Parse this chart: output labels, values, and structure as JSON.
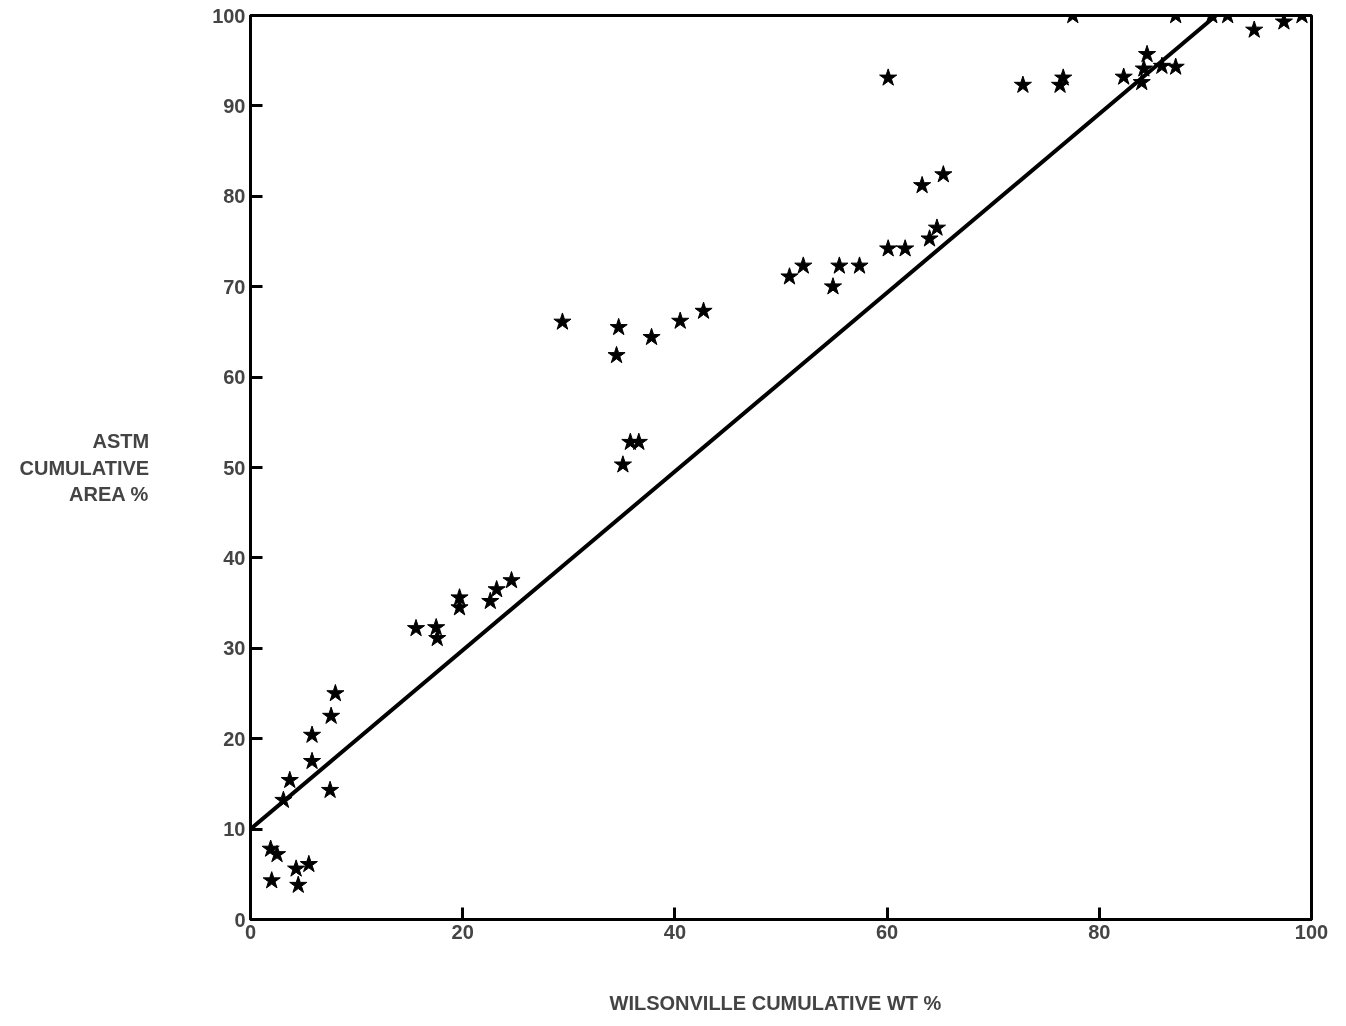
{
  "chart_data": {
    "type": "scatter",
    "xlabel": "WILSONVILLE  CUMULATIVE WT  %",
    "ylabel": "ASTM\nCUMULATIVE\nAREA %",
    "xlim": [
      0,
      100
    ],
    "ylim": [
      0,
      100
    ],
    "xticks": [
      0,
      20,
      40,
      60,
      80,
      100
    ],
    "yticks": [
      0,
      10,
      20,
      30,
      40,
      50,
      60,
      70,
      80,
      90,
      100
    ],
    "grid": false,
    "series": [
      {
        "marker": "star",
        "color": "#000000",
        "x": [
          1.9,
          2.5,
          2,
          4.3,
          4.5,
          5.5,
          3.1,
          3.7,
          5.8,
          5.8,
          7.5,
          7.6,
          8,
          15.6,
          17.5,
          17.6,
          19.7,
          19.7,
          22.6,
          23.2,
          24.6,
          29.4,
          34.5,
          34.7,
          35.1,
          35.8,
          36.6,
          37.8,
          40.5,
          42.7,
          50.8,
          52.1,
          54.9,
          55.5,
          57.4,
          60.1,
          60.1,
          61.7,
          63.3,
          64,
          64.7,
          65.3,
          72.8,
          76.3,
          76.6,
          77.5,
          82.3,
          84,
          84.5,
          84.2,
          85.9,
          87.2,
          87.2,
          90.6,
          92.1,
          94.6,
          97.4,
          99.1
        ],
        "values": [
          7.8,
          7.2,
          4.3,
          5.6,
          3.8,
          6.1,
          13.2,
          15.4,
          17.5,
          20.4,
          14.3,
          22.5,
          25,
          32.2,
          32.3,
          31.1,
          34.5,
          35.6,
          35.2,
          36.5,
          37.5,
          66.1,
          62.4,
          65.5,
          50.3,
          52.8,
          52.8,
          64.4,
          66.2,
          67.3,
          71.1,
          72.3,
          70,
          72.3,
          72.3,
          93.1,
          74.2,
          74.2,
          81.2,
          75.3,
          76.5,
          82.4,
          92.3,
          92.3,
          93.1,
          100,
          93.2,
          92.6,
          95.7,
          94.1,
          94.4,
          94.3,
          100,
          100,
          100,
          98.4,
          99.3,
          100
        ]
      },
      {
        "type": "line",
        "color": "#000000",
        "x": [
          0,
          91
        ],
        "values": [
          10,
          100
        ]
      }
    ]
  }
}
